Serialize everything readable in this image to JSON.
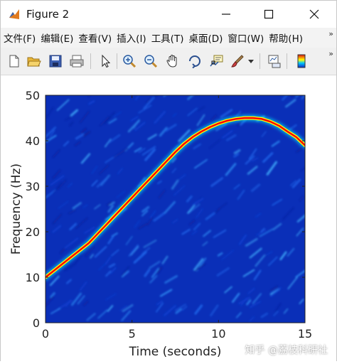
{
  "window": {
    "title": "Figure 2"
  },
  "menu": {
    "items": [
      "文件(F)",
      "编辑(E)",
      "查看(V)",
      "插入(I)",
      "工具(T)",
      "桌面(D)",
      "窗口(W)",
      "帮助(H)"
    ],
    "overflow": "»"
  },
  "toolbar": {
    "icons": [
      "new-figure-icon",
      "open-icon",
      "save-icon",
      "print-icon",
      "pointer-icon",
      "zoom-in-icon",
      "zoom-out-icon",
      "pan-icon",
      "rotate-3d-icon",
      "data-cursor-icon",
      "brush-icon",
      "dropdown-icon",
      "link-plot-icon",
      "colorbar-icon"
    ],
    "overflow": "»"
  },
  "chart_data": {
    "type": "heatmap",
    "title": "",
    "xlabel": "Time (seconds)",
    "ylabel": "Frequency (Hz)",
    "xlim": [
      0,
      15
    ],
    "ylim": [
      0,
      50
    ],
    "xticks": [
      0,
      5,
      10,
      15
    ],
    "yticks": [
      0,
      10,
      20,
      30,
      40,
      50
    ],
    "colormap": "jet",
    "background_color": "#0a2fb8",
    "ridge": {
      "description_colors": [
        "#ff0000",
        "#ffff00",
        "#00ffff"
      ],
      "t": [
        0,
        0.5,
        1,
        1.5,
        2,
        2.5,
        3,
        3.5,
        4,
        4.5,
        5,
        5.5,
        6,
        6.5,
        7,
        7.5,
        8,
        8.5,
        9,
        9.5,
        10,
        10.5,
        11,
        11.5,
        12,
        12.5,
        13,
        13.5,
        14,
        14.5,
        15
      ],
      "f": [
        10,
        11.5,
        13,
        14.5,
        16,
        17.5,
        19.5,
        21.5,
        23.5,
        25.5,
        27.5,
        29.5,
        31.5,
        33.5,
        35.5,
        37.5,
        39.3,
        40.8,
        42,
        43,
        43.8,
        44.4,
        44.8,
        45,
        45,
        44.8,
        44.2,
        43.3,
        42,
        40.8,
        39
      ]
    }
  },
  "watermark": "知乎 @荔枝科研社"
}
